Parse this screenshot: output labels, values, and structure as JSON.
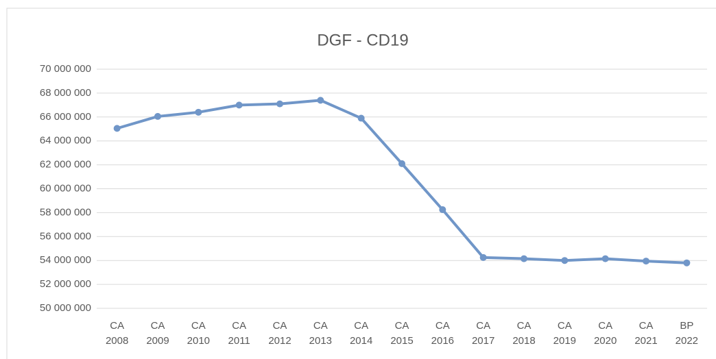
{
  "chart_data": {
    "type": "line",
    "title": "DGF - CD19",
    "categories": [
      "CA 2008",
      "CA 2009",
      "CA 2010",
      "CA 2011",
      "CA 2012",
      "CA 2013",
      "CA 2014",
      "CA 2015",
      "CA 2016",
      "CA 2017",
      "CA 2018",
      "CA 2019",
      "CA 2020",
      "CA 2021",
      "BP 2022"
    ],
    "series": [
      {
        "name": "DGF - CD19",
        "color": "#7096c8",
        "values": [
          65050000,
          66050000,
          66400000,
          67000000,
          67100000,
          67400000,
          65900000,
          62100000,
          58250000,
          54250000,
          54150000,
          54000000,
          54150000,
          53950000,
          53800000
        ]
      }
    ],
    "ylim": [
      50000000,
      70000000
    ],
    "yticks": [
      {
        "value": 50000000,
        "label": "50 000 000"
      },
      {
        "value": 52000000,
        "label": "52 000 000"
      },
      {
        "value": 54000000,
        "label": "54 000 000"
      },
      {
        "value": 56000000,
        "label": "56 000 000"
      },
      {
        "value": 58000000,
        "label": "58 000 000"
      },
      {
        "value": 60000000,
        "label": "60 000 000"
      },
      {
        "value": 62000000,
        "label": "62 000 000"
      },
      {
        "value": 64000000,
        "label": "64 000 000"
      },
      {
        "value": 66000000,
        "label": "66 000 000"
      },
      {
        "value": 68000000,
        "label": "68 000 000"
      },
      {
        "value": 70000000,
        "label": "70 000 000"
      }
    ],
    "grid": true
  }
}
